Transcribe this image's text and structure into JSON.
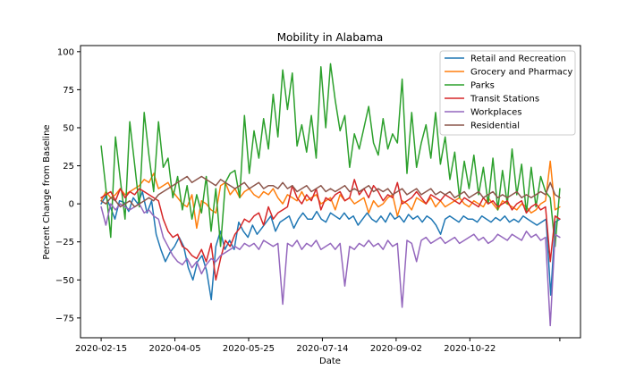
{
  "chart_data": {
    "type": "line",
    "title": "Mobility in Alabama",
    "xlabel": "Date",
    "ylabel": "Percent Change from Baseline",
    "x_start": "2020-02-15",
    "x_end": "2020-12-22",
    "xlim": [
      "2020-02-01",
      "2021-01-05"
    ],
    "ylim": [
      -88,
      104
    ],
    "x_tick_labels": [
      "2020-02-15",
      "2020-04-05",
      "2020-05-25",
      "2020-07-14",
      "2020-09-02",
      "2020-10-22",
      ""
    ],
    "x_ticks": [
      "2020-02-15",
      "2020-04-05",
      "2020-05-25",
      "2020-07-14",
      "2020-09-02",
      "2020-10-22",
      "2020-12-22"
    ],
    "y_ticks": [
      100,
      75,
      50,
      25,
      0,
      -25,
      -50,
      -75
    ],
    "y_tick_labels": [
      "100",
      "75",
      "50",
      "25",
      "0",
      "−25",
      "−50",
      "−75"
    ],
    "legend_position": "top-right",
    "grid": false,
    "series": [
      {
        "name": "Retail and Recreation",
        "color": "#1f77b4",
        "values": [
          0,
          5,
          -2,
          -10,
          2,
          1,
          -5,
          4,
          0,
          8,
          -6,
          2,
          -20,
          -30,
          -38,
          -32,
          -28,
          -22,
          -28,
          -42,
          -50,
          -38,
          -34,
          -44,
          -63,
          -28,
          -18,
          -30,
          -24,
          -30,
          -12,
          -18,
          -22,
          -14,
          -20,
          -16,
          -12,
          -8,
          -18,
          -12,
          -10,
          -8,
          -16,
          -10,
          -6,
          -10,
          -10,
          -5,
          -10,
          -12,
          -6,
          -8,
          -10,
          -6,
          -10,
          -8,
          -14,
          -10,
          -6,
          -10,
          -12,
          -8,
          -12,
          -6,
          -10,
          -8,
          -12,
          -7,
          -10,
          -8,
          -12,
          -8,
          -10,
          -14,
          -20,
          -10,
          -8,
          -10,
          -12,
          -8,
          -10,
          -10,
          -12,
          -8,
          -10,
          -12,
          -9,
          -11,
          -8,
          -12,
          -10,
          -12,
          -8,
          -10,
          -12,
          -14,
          -12,
          -10,
          -60,
          -12,
          -10
        ]
      },
      {
        "name": "Grocery and Pharmacy",
        "color": "#ff7f0e",
        "values": [
          2,
          8,
          4,
          6,
          10,
          6,
          8,
          10,
          12,
          16,
          14,
          20,
          10,
          12,
          14,
          8,
          4,
          0,
          -2,
          6,
          -16,
          2,
          0,
          -4,
          -6,
          12,
          14,
          6,
          10,
          4,
          8,
          10,
          6,
          4,
          8,
          6,
          10,
          4,
          0,
          6,
          4,
          2,
          8,
          2,
          4,
          6,
          0,
          2,
          4,
          -4,
          6,
          2,
          4,
          0,
          2,
          4,
          -6,
          2,
          -2,
          0,
          4,
          6,
          -8,
          2,
          0,
          -4,
          4,
          2,
          0,
          4,
          -2,
          2,
          -2,
          0,
          2,
          4,
          0,
          -2,
          2,
          0,
          -2,
          4,
          0,
          -4,
          2,
          0,
          -2,
          -4,
          0,
          -2,
          -6,
          -4,
          0,
          2,
          28,
          -4,
          -2
        ]
      },
      {
        "name": "Parks",
        "color": "#2ca02c",
        "values": [
          38,
          10,
          -22,
          44,
          16,
          -10,
          54,
          26,
          -2,
          60,
          32,
          8,
          54,
          24,
          30,
          4,
          18,
          -4,
          12,
          -10,
          6,
          -6,
          18,
          -18,
          10,
          -28,
          14,
          20,
          22,
          4,
          58,
          20,
          48,
          30,
          56,
          36,
          72,
          44,
          88,
          62,
          86,
          38,
          52,
          34,
          58,
          30,
          90,
          50,
          92,
          68,
          48,
          58,
          24,
          46,
          36,
          50,
          64,
          40,
          32,
          56,
          36,
          46,
          40,
          82,
          20,
          60,
          24,
          40,
          52,
          30,
          60,
          26,
          44,
          16,
          34,
          4,
          28,
          10,
          32,
          6,
          24,
          0,
          30,
          -4,
          22,
          0,
          36,
          6,
          26,
          -6,
          24,
          -2,
          18,
          8,
          4,
          -28,
          10
        ]
      },
      {
        "name": "Transit Stations",
        "color": "#d62728",
        "values": [
          4,
          6,
          8,
          2,
          10,
          4,
          8,
          6,
          10,
          8,
          6,
          4,
          2,
          -10,
          -18,
          -22,
          -20,
          -28,
          -30,
          -34,
          -36,
          -30,
          -38,
          -26,
          -50,
          -36,
          -24,
          -28,
          -20,
          -16,
          -10,
          -12,
          -8,
          -6,
          -14,
          -2,
          -10,
          -6,
          -4,
          -2,
          12,
          4,
          0,
          6,
          2,
          10,
          -4,
          4,
          2,
          6,
          8,
          2,
          4,
          16,
          6,
          10,
          4,
          12,
          8,
          2,
          6,
          4,
          14,
          0,
          2,
          4,
          8,
          4,
          0,
          6,
          4,
          2,
          6,
          4,
          2,
          0,
          4,
          2,
          0,
          -2,
          4,
          0,
          2,
          -2,
          0,
          2,
          -4,
          0,
          2,
          -6,
          -2,
          0,
          -4,
          -2,
          -38,
          -8,
          -10
        ]
      },
      {
        "name": "Workplaces",
        "color": "#9467bd",
        "values": [
          -2,
          -14,
          0,
          -4,
          0,
          -2,
          -4,
          -2,
          0,
          -6,
          -4,
          -8,
          -10,
          -22,
          -28,
          -34,
          -38,
          -40,
          -36,
          -42,
          -38,
          -46,
          -40,
          -36,
          -38,
          -34,
          -32,
          -30,
          -28,
          -30,
          -26,
          -28,
          -26,
          -30,
          -24,
          -26,
          -28,
          -26,
          -66,
          -26,
          -28,
          -24,
          -30,
          -26,
          -28,
          -24,
          -30,
          -28,
          -26,
          -30,
          -26,
          -54,
          -28,
          -30,
          -26,
          -28,
          -24,
          -28,
          -26,
          -30,
          -24,
          -28,
          -26,
          -68,
          -24,
          -26,
          -38,
          -24,
          -22,
          -26,
          -24,
          -22,
          -26,
          -24,
          -22,
          -26,
          -24,
          -22,
          -20,
          -24,
          -22,
          -26,
          -24,
          -20,
          -22,
          -24,
          -20,
          -22,
          -24,
          -18,
          -22,
          -20,
          -24,
          -22,
          -80,
          -20,
          -22
        ]
      },
      {
        "name": "Residential",
        "color": "#8c564b",
        "values": [
          2,
          0,
          4,
          2,
          -2,
          0,
          2,
          -2,
          0,
          2,
          4,
          2,
          6,
          8,
          10,
          12,
          14,
          16,
          18,
          14,
          16,
          18,
          16,
          14,
          12,
          16,
          14,
          12,
          10,
          12,
          14,
          10,
          12,
          14,
          10,
          12,
          12,
          10,
          14,
          10,
          12,
          8,
          10,
          12,
          8,
          10,
          12,
          8,
          10,
          8,
          10,
          12,
          8,
          10,
          8,
          10,
          12,
          8,
          10,
          8,
          10,
          6,
          8,
          10,
          6,
          8,
          10,
          6,
          8,
          10,
          6,
          8,
          6,
          8,
          4,
          6,
          8,
          4,
          6,
          8,
          4,
          6,
          8,
          4,
          6,
          4,
          6,
          8,
          4,
          6,
          4,
          6,
          8,
          6,
          14,
          6,
          4
        ]
      }
    ]
  }
}
